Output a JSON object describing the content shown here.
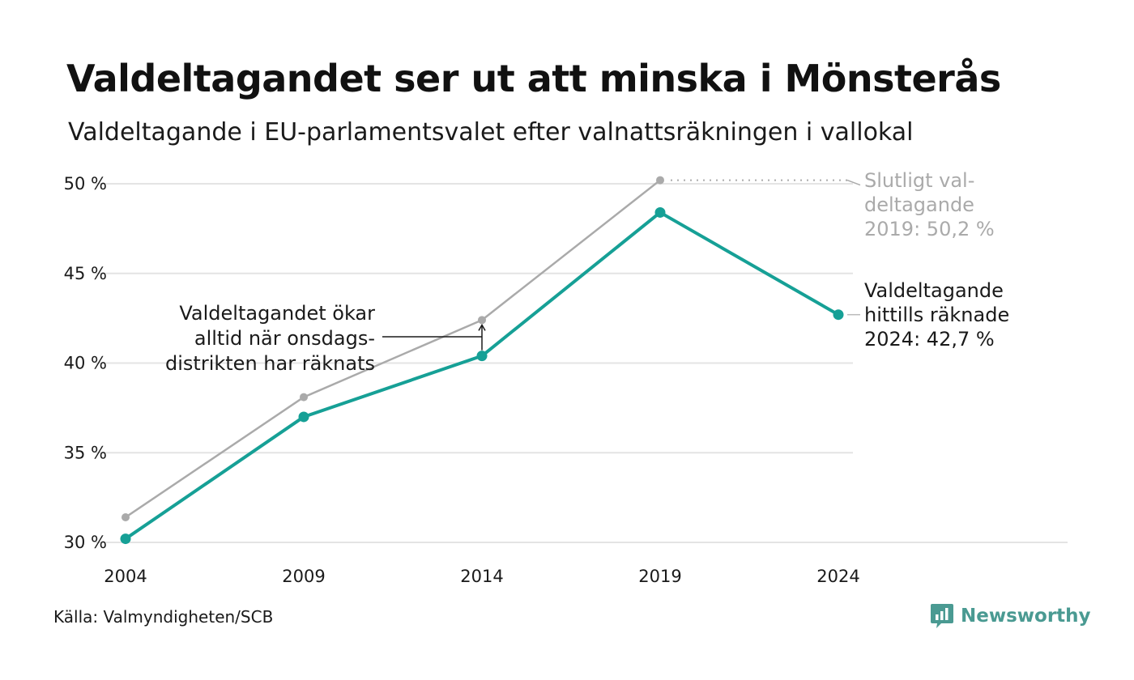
{
  "title": "Valdeltagandet ser ut att minska i Mönsterås",
  "subtitle": "Valdeltagande i EU-parlamentsvalet efter valnattsräkningen i vallokal",
  "source": "Källa: Valmyndigheten/SCB",
  "brand": "Newsworthy",
  "colors": {
    "final": "#aaaaaa",
    "counted": "#16a096",
    "grid": "#e4e4e4",
    "text": "#1a1a1a"
  },
  "chart_data": {
    "type": "line",
    "x": [
      2004,
      2009,
      2014,
      2019,
      2024
    ],
    "xtick_labels": [
      "2004",
      "2009",
      "2014",
      "2019",
      "2024"
    ],
    "ytick_labels": [
      "30 %",
      "35 %",
      "40 %",
      "45 %",
      "50 %"
    ],
    "yticks": [
      30,
      35,
      40,
      45,
      50
    ],
    "ylim": [
      30,
      50
    ],
    "series": [
      {
        "key": "final",
        "values": [
          31.4,
          38.1,
          42.4,
          50.2,
          null
        ]
      },
      {
        "key": "counted",
        "values": [
          30.2,
          37.0,
          40.4,
          48.4,
          42.7
        ]
      }
    ],
    "annotations": {
      "slutligt": [
        "Slutligt val-",
        "deltagande",
        "2019: 50,2 %"
      ],
      "hittills": [
        "Valdeltagande",
        "hittills räknade",
        "2024: 42,7 %"
      ],
      "okar": [
        "Valdeltagandet ökar",
        "alltid när onsdags-",
        "distrikten har räknats"
      ]
    },
    "grid": true
  }
}
